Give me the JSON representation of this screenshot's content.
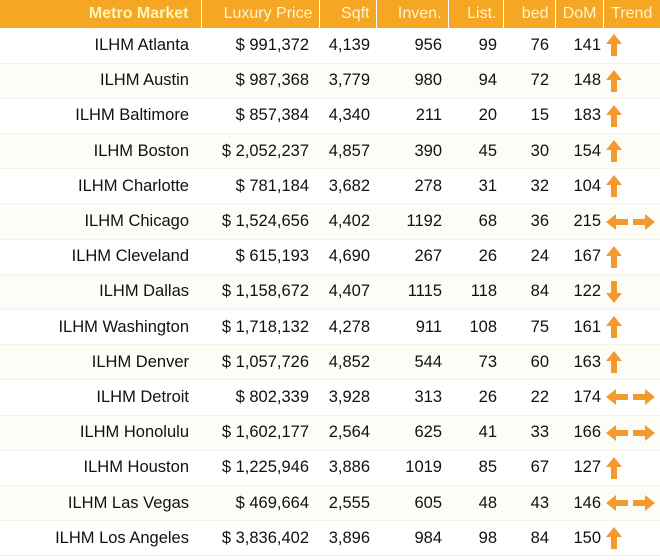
{
  "headers": {
    "metro": "Metro Market",
    "price": "Luxury Price",
    "sqft": "Sqft",
    "inventory": "Inven.",
    "listings": "List.",
    "bed": "bed",
    "dom": "DoM",
    "trend": "Trend"
  },
  "colors": {
    "header_bg": "#f5a623",
    "header_text": "#fff4cf",
    "arrow": "#f39a2e"
  },
  "rows": [
    {
      "metro": "ILHM Atlanta",
      "price": "$ 991,372",
      "sqft": "4,139",
      "inventory": "956",
      "listings": "99",
      "bed": "76",
      "dom": "141",
      "trend": "up"
    },
    {
      "metro": "ILHM Austin",
      "price": "$ 987,368",
      "sqft": "3,779",
      "inventory": "980",
      "listings": "94",
      "bed": "72",
      "dom": "148",
      "trend": "up"
    },
    {
      "metro": "ILHM Baltimore",
      "price": "$ 857,384",
      "sqft": "4,340",
      "inventory": "211",
      "listings": "20",
      "bed": "15",
      "dom": "183",
      "trend": "up"
    },
    {
      "metro": "ILHM Boston",
      "price": "$ 2,052,237",
      "sqft": "4,857",
      "inventory": "390",
      "listings": "45",
      "bed": "30",
      "dom": "154",
      "trend": "up"
    },
    {
      "metro": "ILHM Charlotte",
      "price": "$ 781,184",
      "sqft": "3,682",
      "inventory": "278",
      "listings": "31",
      "bed": "32",
      "dom": "104",
      "trend": "up"
    },
    {
      "metro": "ILHM Chicago",
      "price": "$ 1,524,656",
      "sqft": "4,402",
      "inventory": "1192",
      "listings": "68",
      "bed": "36",
      "dom": "215",
      "trend": "flat"
    },
    {
      "metro": "ILHM Cleveland",
      "price": "$ 615,193",
      "sqft": "4,690",
      "inventory": "267",
      "listings": "26",
      "bed": "24",
      "dom": "167",
      "trend": "up"
    },
    {
      "metro": "ILHM Dallas",
      "price": "$ 1,158,672",
      "sqft": "4,407",
      "inventory": "1115",
      "listings": "118",
      "bed": "84",
      "dom": "122",
      "trend": "down"
    },
    {
      "metro": "ILHM Washington",
      "price": "$ 1,718,132",
      "sqft": "4,278",
      "inventory": "911",
      "listings": "108",
      "bed": "75",
      "dom": "161",
      "trend": "up"
    },
    {
      "metro": "ILHM Denver",
      "price": "$ 1,057,726",
      "sqft": "4,852",
      "inventory": "544",
      "listings": "73",
      "bed": "60",
      "dom": "163",
      "trend": "up"
    },
    {
      "metro": "ILHM Detroit",
      "price": "$ 802,339",
      "sqft": "3,928",
      "inventory": "313",
      "listings": "26",
      "bed": "22",
      "dom": "174",
      "trend": "flat"
    },
    {
      "metro": "ILHM Honolulu",
      "price": "$ 1,602,177",
      "sqft": "2,564",
      "inventory": "625",
      "listings": "41",
      "bed": "33",
      "dom": "166",
      "trend": "flat"
    },
    {
      "metro": "ILHM Houston",
      "price": "$ 1,225,946",
      "sqft": "3,886",
      "inventory": "1019",
      "listings": "85",
      "bed": "67",
      "dom": "127",
      "trend": "up"
    },
    {
      "metro": "ILHM Las Vegas",
      "price": "$ 469,664",
      "sqft": "2,555",
      "inventory": "605",
      "listings": "48",
      "bed": "43",
      "dom": "146",
      "trend": "flat"
    },
    {
      "metro": "ILHM Los Angeles",
      "price": "$ 3,836,402",
      "sqft": "3,896",
      "inventory": "984",
      "listings": "98",
      "bed": "84",
      "dom": "150",
      "trend": "up"
    }
  ]
}
